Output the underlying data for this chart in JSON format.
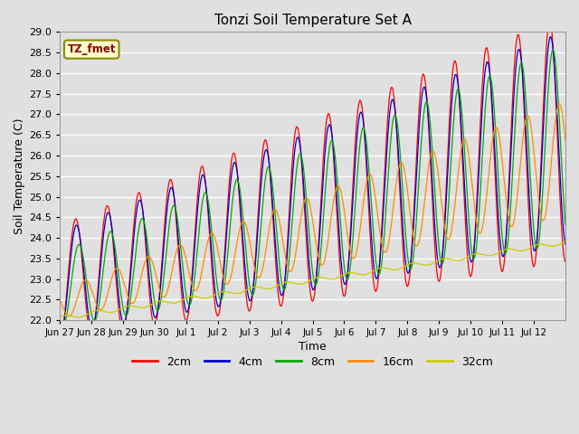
{
  "title": "Tonzi Soil Temperature Set A",
  "xlabel": "Time",
  "ylabel": "Soil Temperature (C)",
  "annotation_text": "TZ_fmet",
  "annotation_color": "#8B0000",
  "annotation_bg": "#FFFFCC",
  "annotation_border": "#8B8B00",
  "ylim": [
    22.0,
    29.0
  ],
  "yticks": [
    22.0,
    22.5,
    23.0,
    23.5,
    24.0,
    24.5,
    25.0,
    25.5,
    26.0,
    26.5,
    27.0,
    27.5,
    28.0,
    28.5,
    29.0
  ],
  "colors": {
    "2cm": "#FF0000",
    "4cm": "#0000CC",
    "8cm": "#00AA00",
    "16cm": "#FF8C00",
    "32cm": "#CCCC00"
  },
  "bg_color": "#E0E0E0",
  "plot_bg_color": "#E0E0E0",
  "grid_color": "#FFFFFF",
  "xtick_dates": [
    "Jun 27",
    "Jun 28",
    "Jun 29",
    "Jun 30",
    "Jul 1",
    "Jul 2",
    "Jul 3",
    "Jul 4",
    "Jul 5",
    "Jul 6",
    "Jul 7",
    "Jul 8",
    "Jul 9",
    "Jul 10",
    "Jul 11",
    "Jul 12"
  ]
}
